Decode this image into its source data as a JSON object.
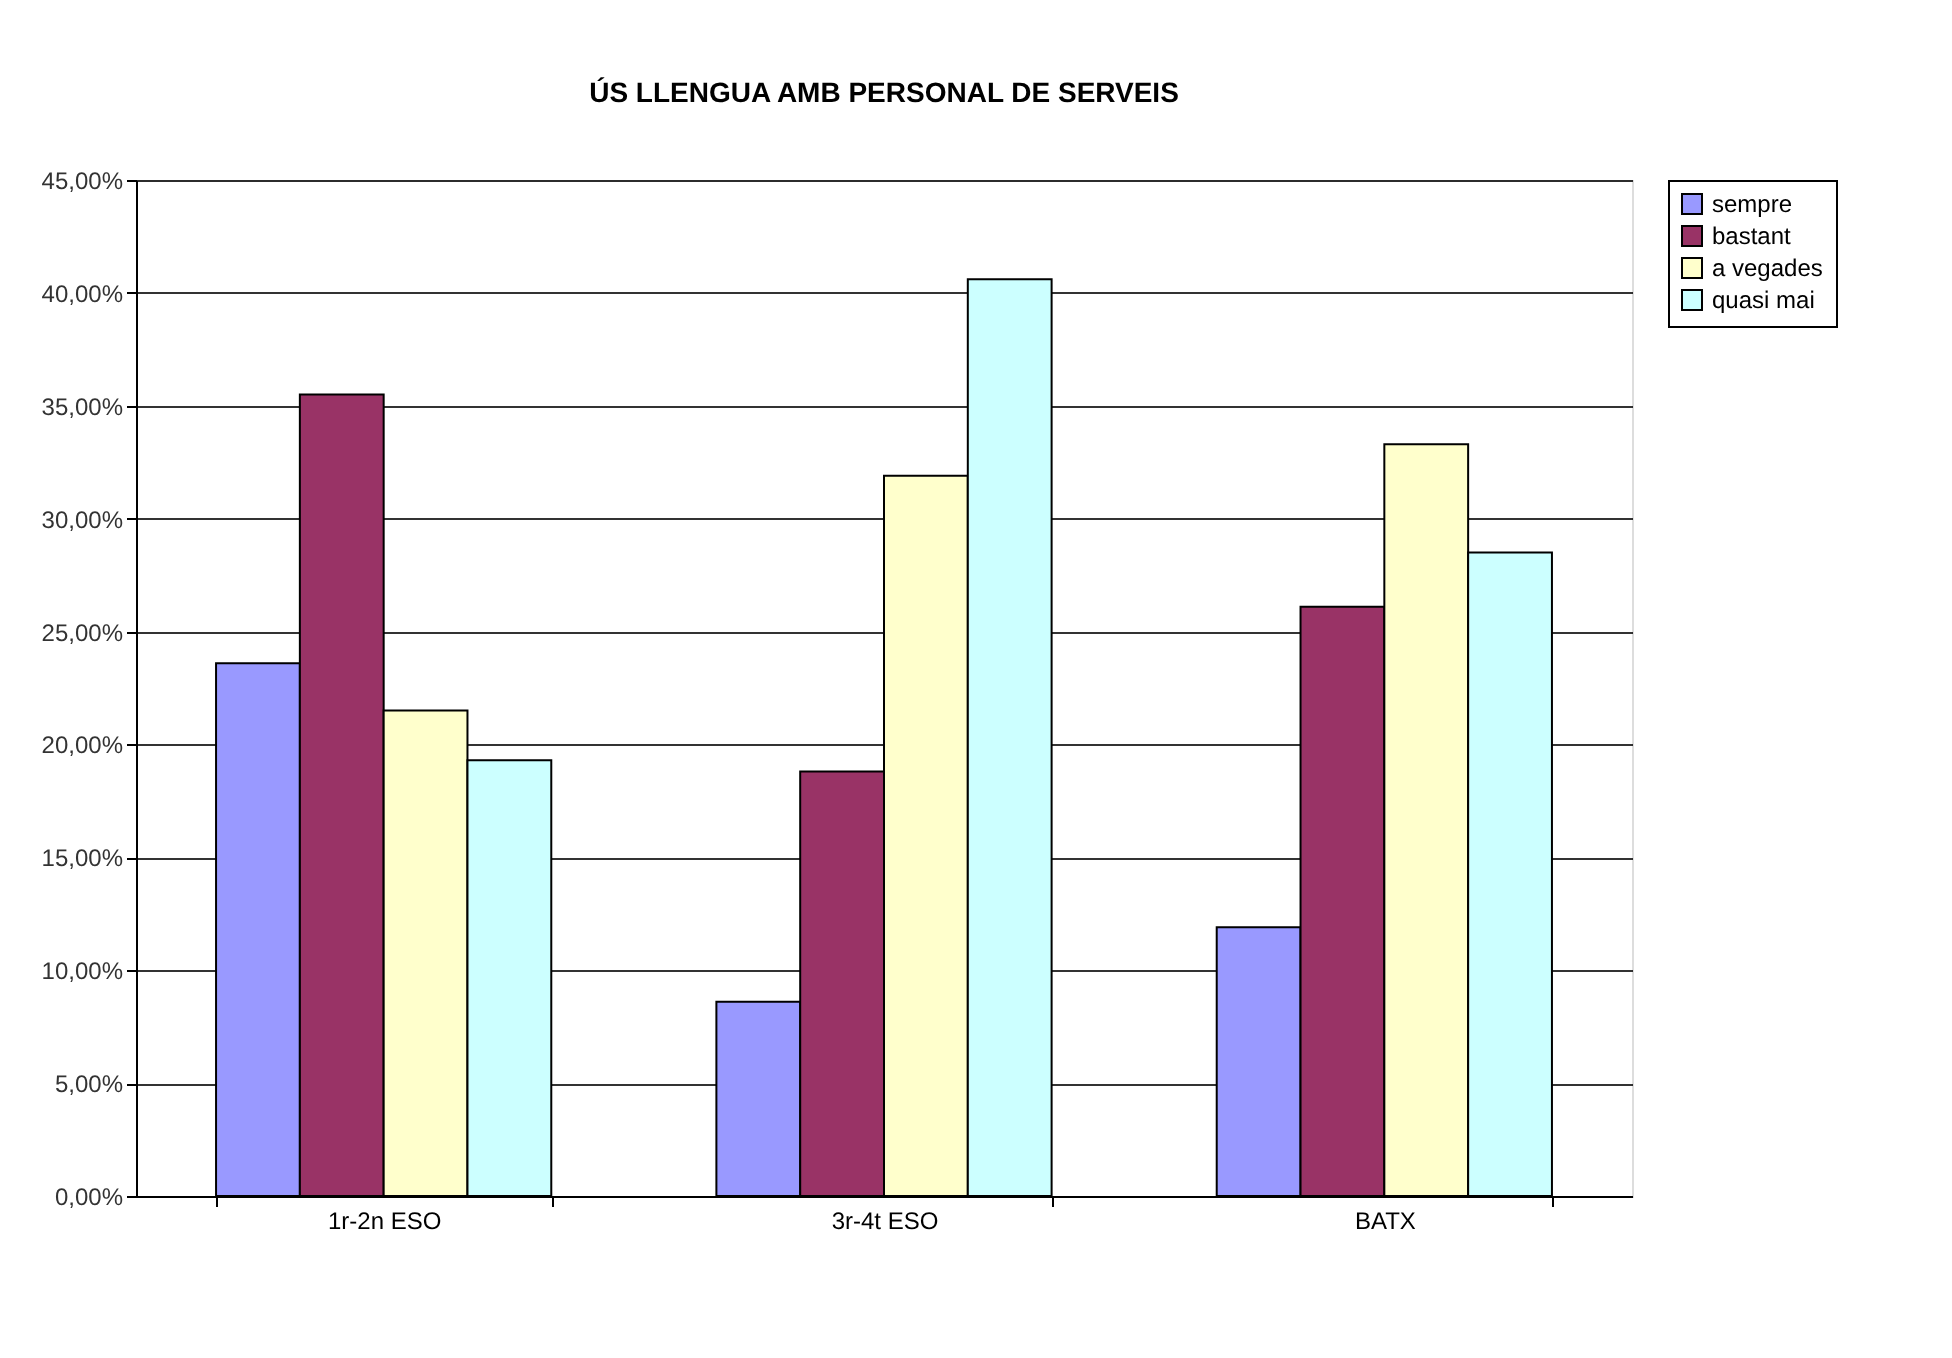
{
  "chart_data": {
    "type": "bar",
    "title": "ÚS LLENGUA AMB PERSONAL DE SERVEIS",
    "categories": [
      "1r-2n ESO",
      "3r-4t ESO",
      "BATX"
    ],
    "series": [
      {
        "name": "sempre",
        "color": "#9999ff",
        "values": [
          23.6,
          8.6,
          11.9
        ]
      },
      {
        "name": "bastant",
        "color": "#993366",
        "values": [
          35.5,
          18.8,
          26.1
        ]
      },
      {
        "name": "a vegades",
        "color": "#ffffcc",
        "values": [
          21.5,
          31.9,
          33.3
        ]
      },
      {
        "name": "quasi mai",
        "color": "#ccffff",
        "values": [
          19.3,
          40.6,
          28.5
        ]
      }
    ],
    "ylim": [
      0,
      45
    ],
    "yticks": [
      {
        "value": 0,
        "label": "0,00%"
      },
      {
        "value": 5,
        "label": "5,00%"
      },
      {
        "value": 10,
        "label": "10,00%"
      },
      {
        "value": 15,
        "label": "15,00%"
      },
      {
        "value": 20,
        "label": "20,00%"
      },
      {
        "value": 25,
        "label": "25,00%"
      },
      {
        "value": 30,
        "label": "30,00%"
      },
      {
        "value": 35,
        "label": "35,00%"
      },
      {
        "value": 40,
        "label": "40,00%"
      },
      {
        "value": 45,
        "label": "45,00%"
      }
    ],
    "grid": "y",
    "legend": "right"
  }
}
